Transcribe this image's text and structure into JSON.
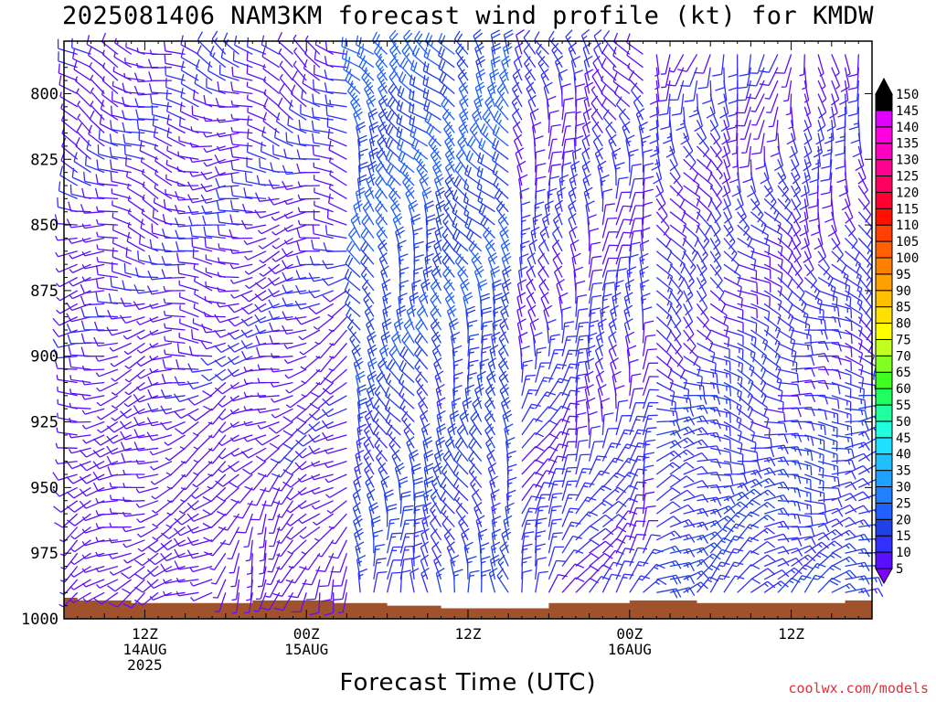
{
  "title": "2025081406 NAM3KM forecast wind profile (kt) for KMDW",
  "xlabel": "Forecast Time (UTC)",
  "credit": "coolwx.com/models",
  "chart_data": {
    "type": "wind-barb-time-height",
    "title": "2025081406 NAM3KM forecast wind profile (kt) for KMDW",
    "xlabel": "Forecast Time (UTC)",
    "ylabel": "",
    "ylim": [
      1000,
      780
    ],
    "yticks": [
      800,
      825,
      850,
      875,
      900,
      925,
      950,
      975,
      1000
    ],
    "xlim_hours": [
      6,
      66
    ],
    "xticks": [
      {
        "hour": 12,
        "label": [
          "12Z",
          "14AUG",
          "2025"
        ]
      },
      {
        "hour": 24,
        "label": [
          "00Z",
          "15AUG"
        ]
      },
      {
        "hour": 36,
        "label": [
          "12Z"
        ]
      },
      {
        "hour": 48,
        "label": [
          "00Z",
          "16AUG"
        ]
      },
      {
        "hour": 60,
        "label": [
          "12Z"
        ]
      }
    ],
    "colorbar": {
      "levels": [
        5,
        10,
        15,
        20,
        25,
        30,
        35,
        40,
        45,
        50,
        55,
        60,
        65,
        70,
        75,
        80,
        85,
        90,
        95,
        100,
        105,
        110,
        115,
        120,
        125,
        130,
        135,
        140,
        145,
        150
      ],
      "colors": [
        "#8000ff",
        "#5a10ff",
        "#3030ff",
        "#2040e8",
        "#2060ff",
        "#2080ff",
        "#20a0ff",
        "#20c0ff",
        "#20e0ff",
        "#20ffe0",
        "#20ffa0",
        "#20ff60",
        "#40ff20",
        "#80ff20",
        "#c0ff20",
        "#ffff00",
        "#ffe000",
        "#ffc000",
        "#ffa000",
        "#ff8000",
        "#ff6000",
        "#ff4000",
        "#ff1000",
        "#ff0030",
        "#ff0060",
        "#ff0090",
        "#ff00c0",
        "#ff00e0",
        "#e000ff",
        "#000000"
      ]
    },
    "surface_color": "#a0522d",
    "surface_pressure": [
      {
        "hour": 6,
        "p": 992
      },
      {
        "hour": 7,
        "p": 993
      },
      {
        "hour": 11,
        "p": 994
      },
      {
        "hour": 20,
        "p": 993
      },
      {
        "hour": 26,
        "p": 994
      },
      {
        "hour": 30,
        "p": 995
      },
      {
        "hour": 34,
        "p": 996
      },
      {
        "hour": 42,
        "p": 994
      },
      {
        "hour": 48,
        "p": 993
      },
      {
        "hour": 53,
        "p": 994
      },
      {
        "hour": 60,
        "p": 994
      },
      {
        "hour": 64,
        "p": 993
      },
      {
        "hour": 66,
        "p": 993
      }
    ],
    "barbs_note": "wind barbs sampled hourly at 5 hPa spacing; direction (deg from) and speed (kt) estimated",
    "wind_regimes": [
      {
        "hours": [
          6,
          18
        ],
        "dir_lower": 230,
        "dir_upper": 300,
        "speed_lower": 6,
        "speed_upper": 9
      },
      {
        "hours": [
          18,
          28
        ],
        "dir_lower": 200,
        "dir_upper": 300,
        "speed_lower": 6,
        "speed_upper": 10
      },
      {
        "hours": [
          28,
          40
        ],
        "dir_lower": 350,
        "dir_upper": 320,
        "speed_lower": 14,
        "speed_upper": 22
      },
      {
        "hours": [
          40,
          50
        ],
        "dir_lower": 35,
        "dir_upper": 330,
        "speed_lower": 12,
        "speed_upper": 10
      },
      {
        "hours": [
          50,
          66
        ],
        "dir_lower": 45,
        "dir_upper": 190,
        "speed_lower": 15,
        "speed_upper": 9
      }
    ]
  }
}
